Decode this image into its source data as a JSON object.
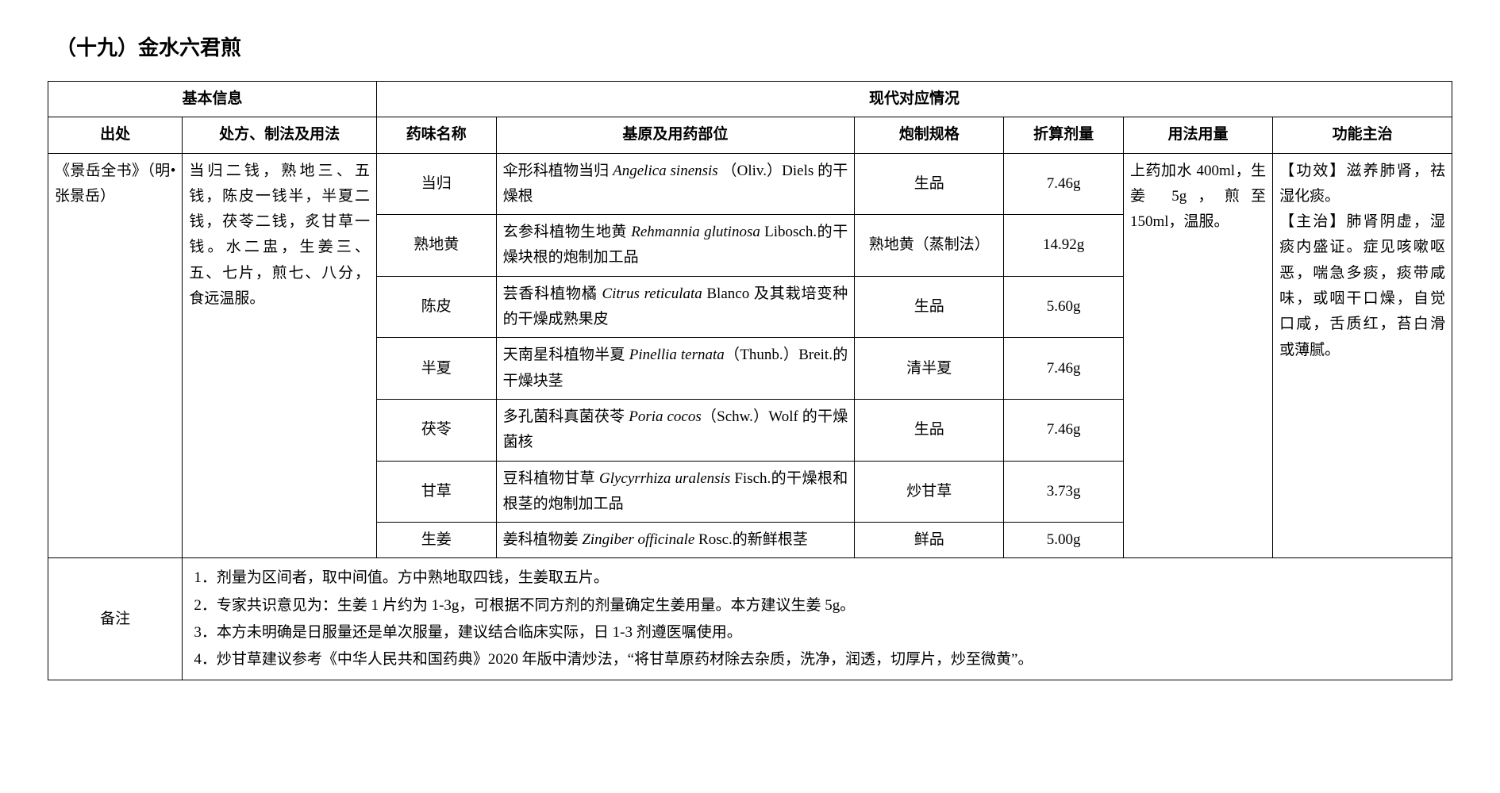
{
  "title": "（十九）金水六君煎",
  "headers": {
    "basic_info": "基本信息",
    "modern_info": "现代对应情况",
    "source": "出处",
    "rx": "处方、制法及用法",
    "herb_name": "药味名称",
    "origin": "基原及用药部位",
    "processing": "炮制规格",
    "converted_dose": "折算剂量",
    "usage": "用法用量",
    "function": "功能主治"
  },
  "source_text": "《景岳全书》（明•张景岳）",
  "rx_text": "当归二钱，熟地三、五钱，陈皮一钱半，半夏二钱，茯苓二钱，炙甘草一钱。水二盅，生姜三、五、七片，煎七、八分，食远温服。",
  "usage_text": "上药加水 400ml，生姜 5g，煎至 150ml，温服。",
  "function_text": "【功效】滋养肺肾，祛湿化痰。\n【主治】肺肾阴虚，湿痰内盛证。症见咳嗽呕恶，喘急多痰，痰带咸味，或咽干口燥，自觉口咸，舌质红，苔白滑或薄腻。",
  "herbs": [
    {
      "name": "当归",
      "origin_pre": "伞形科植物当归 ",
      "origin_latin": "Angelica sinensis",
      "origin_post": " （Oliv.）Diels 的干燥根",
      "processing": "生品",
      "dose": "7.46g"
    },
    {
      "name": "熟地黄",
      "origin_pre": "玄参科植物生地黄 ",
      "origin_latin": "Rehmannia glutinosa",
      "origin_post": " Libosch.的干燥块根的炮制加工品",
      "processing": "熟地黄（蒸制法）",
      "dose": "14.92g"
    },
    {
      "name": "陈皮",
      "origin_pre": "芸香科植物橘 ",
      "origin_latin": "Citrus reticulata",
      "origin_post": " Blanco 及其栽培变种的干燥成熟果皮",
      "processing": "生品",
      "dose": "5.60g"
    },
    {
      "name": "半夏",
      "origin_pre": "天南星科植物半夏 ",
      "origin_latin": "Pinellia ternata",
      "origin_post": "（Thunb.）Breit.的干燥块茎",
      "processing": "清半夏",
      "dose": "7.46g"
    },
    {
      "name": "茯苓",
      "origin_pre": "多孔菌科真菌茯苓 ",
      "origin_latin": "Poria cocos",
      "origin_post": "（Schw.）Wolf 的干燥菌核",
      "processing": "生品",
      "dose": "7.46g"
    },
    {
      "name": "甘草",
      "origin_pre": "豆科植物甘草 ",
      "origin_latin": "Glycyrrhiza uralensis",
      "origin_post": " Fisch.的干燥根和根茎的炮制加工品",
      "processing": "炒甘草",
      "dose": "3.73g"
    },
    {
      "name": "生姜",
      "origin_pre": "姜科植物姜 ",
      "origin_latin": "Zingiber officinale",
      "origin_post": " Rosc.的新鲜根茎",
      "processing": "鲜品",
      "dose": "5.00g"
    }
  ],
  "notes_label": "备注",
  "notes": [
    "1．剂量为区间者，取中间值。方中熟地取四钱，生姜取五片。",
    "2．专家共识意见为：生姜 1 片约为 1-3g，可根据不同方剂的剂量确定生姜用量。本方建议生姜 5g。",
    "3．本方未明确是日服量还是单次服量，建议结合临床实际，日 1-3 剂遵医嘱使用。",
    "4．炒甘草建议参考《中华人民共和国药典》2020 年版中清炒法，“将甘草原药材除去杂质，洗净，润透，切厚片，炒至微黄”。"
  ],
  "colors": {
    "text": "#000000",
    "background": "#ffffff",
    "border": "#000000"
  },
  "typography": {
    "title_fontsize": 26,
    "body_fontsize": 19,
    "font_family": "SimSun"
  }
}
